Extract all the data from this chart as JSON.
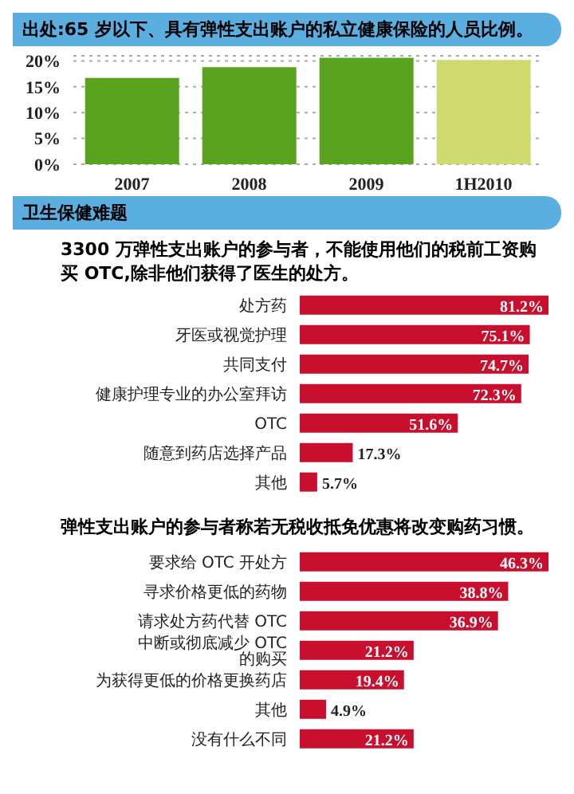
{
  "chart_data": [
    {
      "type": "bar",
      "title": "出处:65 岁以下、具有弹性支出账户的私立健康保险的人员比例。",
      "categories": [
        "2007",
        "2008",
        "2009",
        "1H2010"
      ],
      "values": [
        16.7,
        18.8,
        20.6,
        20.2
      ],
      "colors": [
        "#5aa31e",
        "#5aa31e",
        "#5aa31e",
        "#cfdb6f"
      ],
      "ylim": [
        0,
        21
      ],
      "yticks": [
        {
          "value": 0,
          "label": "0%"
        },
        {
          "value": 5,
          "label": "5%"
        },
        {
          "value": 10,
          "label": "10%"
        },
        {
          "value": 15,
          "label": "15%"
        },
        {
          "value": 20,
          "label": "20%"
        }
      ],
      "grid": "y",
      "annotations": [
        "卫生保健难题"
      ]
    },
    {
      "type": "bar",
      "orientation": "horizontal",
      "title": "3300 万弹性支出账户的参与者，不能使用他们的税前工资购买 OTC,除非他们获得了医生的处方。",
      "categories": [
        "处方药",
        "牙医或视觉护理",
        "共同支付",
        "健康护理专业的办公室拜访",
        "OTC",
        "随意到药店选择产品",
        "其他"
      ],
      "values": [
        81.2,
        75.1,
        74.7,
        72.3,
        51.6,
        17.3,
        5.7
      ],
      "color": "#c8102e",
      "value_labels": [
        "81.2%",
        "75.1%",
        "74.7%",
        "72.3%",
        "51.6%",
        "17.3%",
        "5.7%"
      ]
    },
    {
      "type": "bar",
      "orientation": "horizontal",
      "title": "弹性支出账户的参与者称若无税收抵免优惠将改变购药习惯。",
      "categories": [
        "要求给 OTC 开处方",
        "寻求价格更低的药物",
        "请求处方药代替 OTC",
        "中断或彻底减少 OTC 的购买",
        "为获得更低的价格更换药店",
        "其他",
        "没有什么不同"
      ],
      "values": [
        46.3,
        38.8,
        36.9,
        21.2,
        19.4,
        4.9,
        21.2
      ],
      "color": "#c8102e",
      "value_labels": [
        "46.3%",
        "38.8%",
        "36.9%",
        "21.2%",
        "19.4%",
        "4.9%",
        "21.2%"
      ]
    }
  ]
}
